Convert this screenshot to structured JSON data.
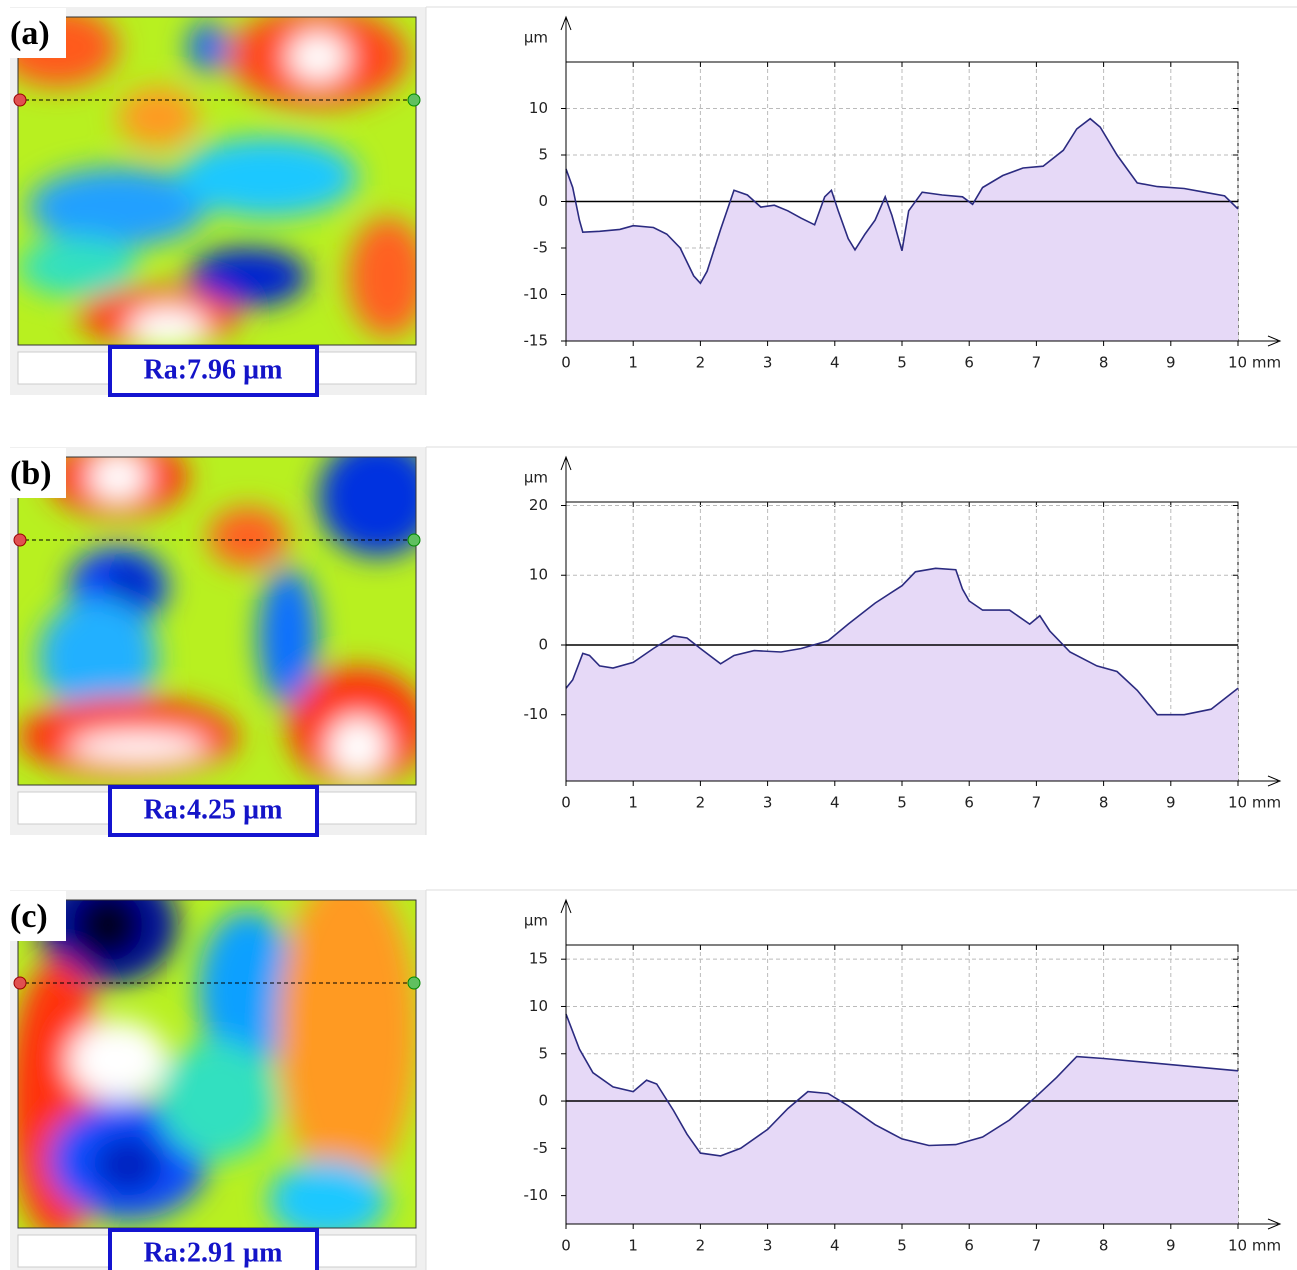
{
  "chart_data": [
    {
      "type": "area",
      "panel_label": "(a)",
      "roughness": "Ra:7.96 µm",
      "y_label": "µm",
      "color": "#2b2b80",
      "fill_color": "#e6d9f7",
      "grid": true,
      "xlim": [
        0,
        10
      ],
      "ylim": [
        -15,
        15
      ],
      "xticks": [
        0,
        1,
        2,
        3,
        4,
        5,
        6,
        7,
        8,
        9,
        {
          "value": 10,
          "label": "10 mm"
        }
      ],
      "yticks": [
        -15,
        -10,
        -5,
        0,
        5,
        10
      ],
      "x": [
        0,
        0.1,
        0.2,
        0.25,
        0.5,
        0.8,
        1.0,
        1.3,
        1.5,
        1.7,
        1.9,
        2.0,
        2.1,
        2.3,
        2.5,
        2.7,
        2.9,
        3.1,
        3.3,
        3.5,
        3.7,
        3.85,
        3.95,
        4.05,
        4.2,
        4.3,
        4.45,
        4.6,
        4.75,
        4.85,
        5.0,
        5.1,
        5.3,
        5.6,
        5.9,
        6.05,
        6.2,
        6.5,
        6.8,
        7.1,
        7.4,
        7.6,
        7.8,
        7.95,
        8.2,
        8.5,
        8.8,
        9.2,
        9.5,
        9.8,
        10.0
      ],
      "values": [
        3.5,
        1.5,
        -2,
        -3.3,
        -3.2,
        -3,
        -2.6,
        -2.8,
        -3.5,
        -5,
        -8,
        -8.8,
        -7.5,
        -3,
        1.2,
        0.7,
        -0.6,
        -0.4,
        -1,
        -1.8,
        -2.5,
        0.5,
        1.2,
        -1,
        -4,
        -5.2,
        -3.5,
        -2,
        0.5,
        -1.5,
        -5.3,
        -1,
        1,
        0.7,
        0.5,
        -0.3,
        1.5,
        2.8,
        3.6,
        3.8,
        5.5,
        7.8,
        8.9,
        8,
        5,
        2,
        1.6,
        1.4,
        1,
        0.6,
        -0.8
      ]
    },
    {
      "type": "area",
      "panel_label": "(b)",
      "roughness": "Ra:4.25 µm",
      "y_label": "µm",
      "color": "#2b2b80",
      "fill_color": "#e6d9f7",
      "grid": true,
      "xlim": [
        0,
        10
      ],
      "ylim": [
        -19.5,
        20.5
      ],
      "xticks": [
        0,
        1,
        2,
        3,
        4,
        5,
        6,
        7,
        8,
        9,
        {
          "value": 10,
          "label": "10 mm"
        }
      ],
      "yticks": [
        -10,
        0,
        10,
        20
      ],
      "x": [
        0,
        0.1,
        0.25,
        0.35,
        0.5,
        0.7,
        1.0,
        1.3,
        1.6,
        1.8,
        2.0,
        2.3,
        2.5,
        2.8,
        3.2,
        3.5,
        3.9,
        4.2,
        4.6,
        5.0,
        5.2,
        5.5,
        5.8,
        5.9,
        6.0,
        6.2,
        6.6,
        6.9,
        7.05,
        7.2,
        7.5,
        7.9,
        8.2,
        8.5,
        8.8,
        9.2,
        9.6,
        10
      ],
      "values": [
        -6.2,
        -5,
        -1.2,
        -1.5,
        -3,
        -3.3,
        -2.5,
        -0.5,
        1.3,
        1,
        -0.5,
        -2.7,
        -1.5,
        -0.8,
        -1,
        -0.5,
        0.6,
        3,
        6,
        8.5,
        10.5,
        11,
        10.8,
        8,
        6.3,
        5,
        5,
        3,
        4.2,
        2,
        -1,
        -3,
        -3.8,
        -6.5,
        -10,
        -10,
        -9.2,
        -6.2
      ]
    },
    {
      "type": "area",
      "panel_label": "(c)",
      "roughness": "Ra:2.91 µm",
      "y_label": "µm",
      "color": "#2b2b80",
      "fill_color": "#e6d9f7",
      "grid": true,
      "xlim": [
        0,
        10
      ],
      "ylim": [
        -13,
        16.5
      ],
      "xticks": [
        0,
        1,
        2,
        3,
        4,
        5,
        6,
        7,
        8,
        9,
        {
          "value": 10,
          "label": "10 mm"
        }
      ],
      "yticks": [
        -10,
        -5,
        0,
        5,
        10,
        15
      ],
      "x": [
        0,
        0.2,
        0.4,
        0.7,
        1.0,
        1.2,
        1.35,
        1.6,
        1.8,
        2.0,
        2.3,
        2.6,
        3.0,
        3.3,
        3.6,
        3.9,
        4.2,
        4.6,
        5.0,
        5.4,
        5.8,
        6.2,
        6.6,
        7.0,
        7.3,
        7.6,
        8.0,
        10
      ],
      "values": [
        9.2,
        5.5,
        3,
        1.5,
        1,
        2.2,
        1.8,
        -1,
        -3.5,
        -5.5,
        -5.8,
        -5,
        -3,
        -0.8,
        1,
        0.8,
        -0.5,
        -2.5,
        -4,
        -4.7,
        -4.6,
        -3.8,
        -2,
        0.5,
        2.5,
        4.7,
        4.5,
        3.2
      ]
    }
  ]
}
